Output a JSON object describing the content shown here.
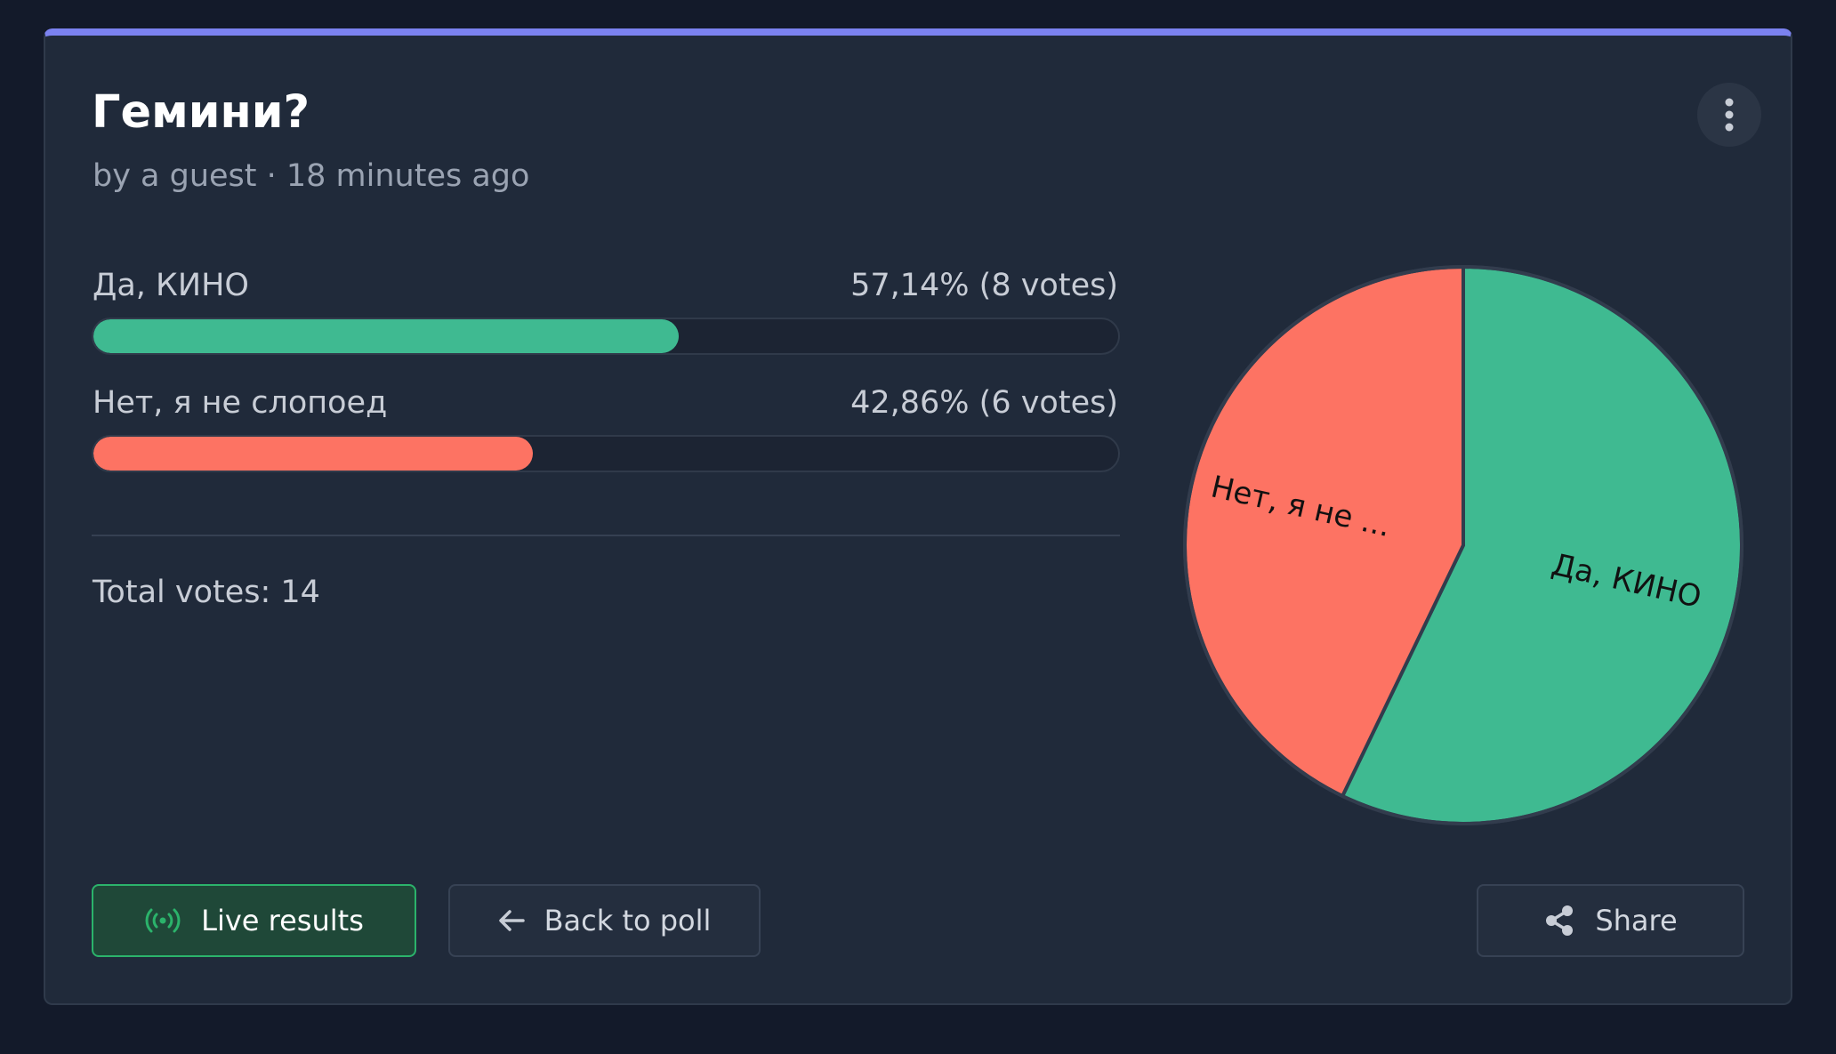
{
  "poll": {
    "title": "Гемини?",
    "meta": "by a guest · 18 minutes ago",
    "total_label": "Total votes: 14"
  },
  "options": [
    {
      "label": "Да, КИНО",
      "result": "57,14% (8 votes)",
      "fraction": 0.5714,
      "color": "#3fba91"
    },
    {
      "label": "Нет, я не слопоед",
      "result": "42,86% (6 votes)",
      "fraction": 0.4286,
      "color": "#fd7363"
    }
  ],
  "chart_data": {
    "type": "pie",
    "labels": [
      "Да, КИНО",
      "Нет, я не ..."
    ],
    "values": [
      8,
      6
    ],
    "colors": [
      "#3fba91",
      "#fd7363"
    ]
  },
  "buttons": {
    "live_results": "Live results",
    "back_to_poll": "Back to poll",
    "share": "Share"
  },
  "icons": {
    "menu": "kebab-menu-icon",
    "live": "broadcast-icon",
    "back": "arrow-left-icon",
    "share": "share-icon"
  },
  "colors": {
    "accent": "#7b82f0",
    "live_green": "#2bb36b"
  }
}
